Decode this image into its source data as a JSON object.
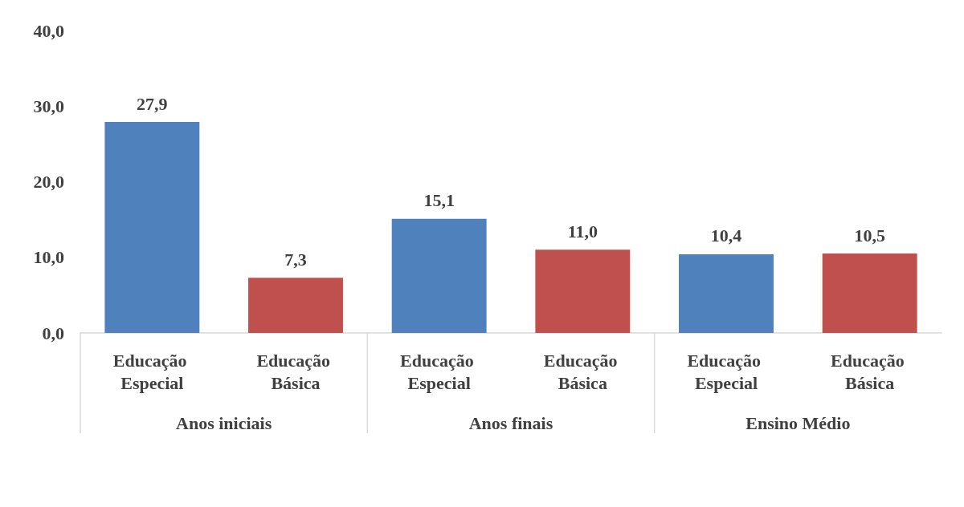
{
  "chart_data": {
    "type": "bar",
    "categories": [
      "Educação Especial",
      "Educação Básica",
      "Educação Especial",
      "Educação Básica",
      "Educação Especial",
      "Educação Básica"
    ],
    "values": [
      27.9,
      7.3,
      15.1,
      11.0,
      10.4,
      10.5
    ],
    "colors": [
      "#4f81bd",
      "#c0504d",
      "#4f81bd",
      "#c0504d",
      "#4f81bd",
      "#c0504d"
    ],
    "value_labels": [
      "27,9",
      "7,3",
      "15,1",
      "11,0",
      "10,4",
      "10,5"
    ],
    "annotations": [
      "Anos iniciais",
      "Anos finais",
      "Ensino Médio"
    ],
    "ylim": [
      0,
      40
    ],
    "yticks": [
      {
        "value": 0,
        "label": "0,0"
      },
      {
        "value": 10,
        "label": "10,0"
      },
      {
        "value": 20,
        "label": "20,0"
      },
      {
        "value": 30,
        "label": "30,0"
      },
      {
        "value": 40,
        "label": "40,0"
      }
    ],
    "grid": false
  }
}
